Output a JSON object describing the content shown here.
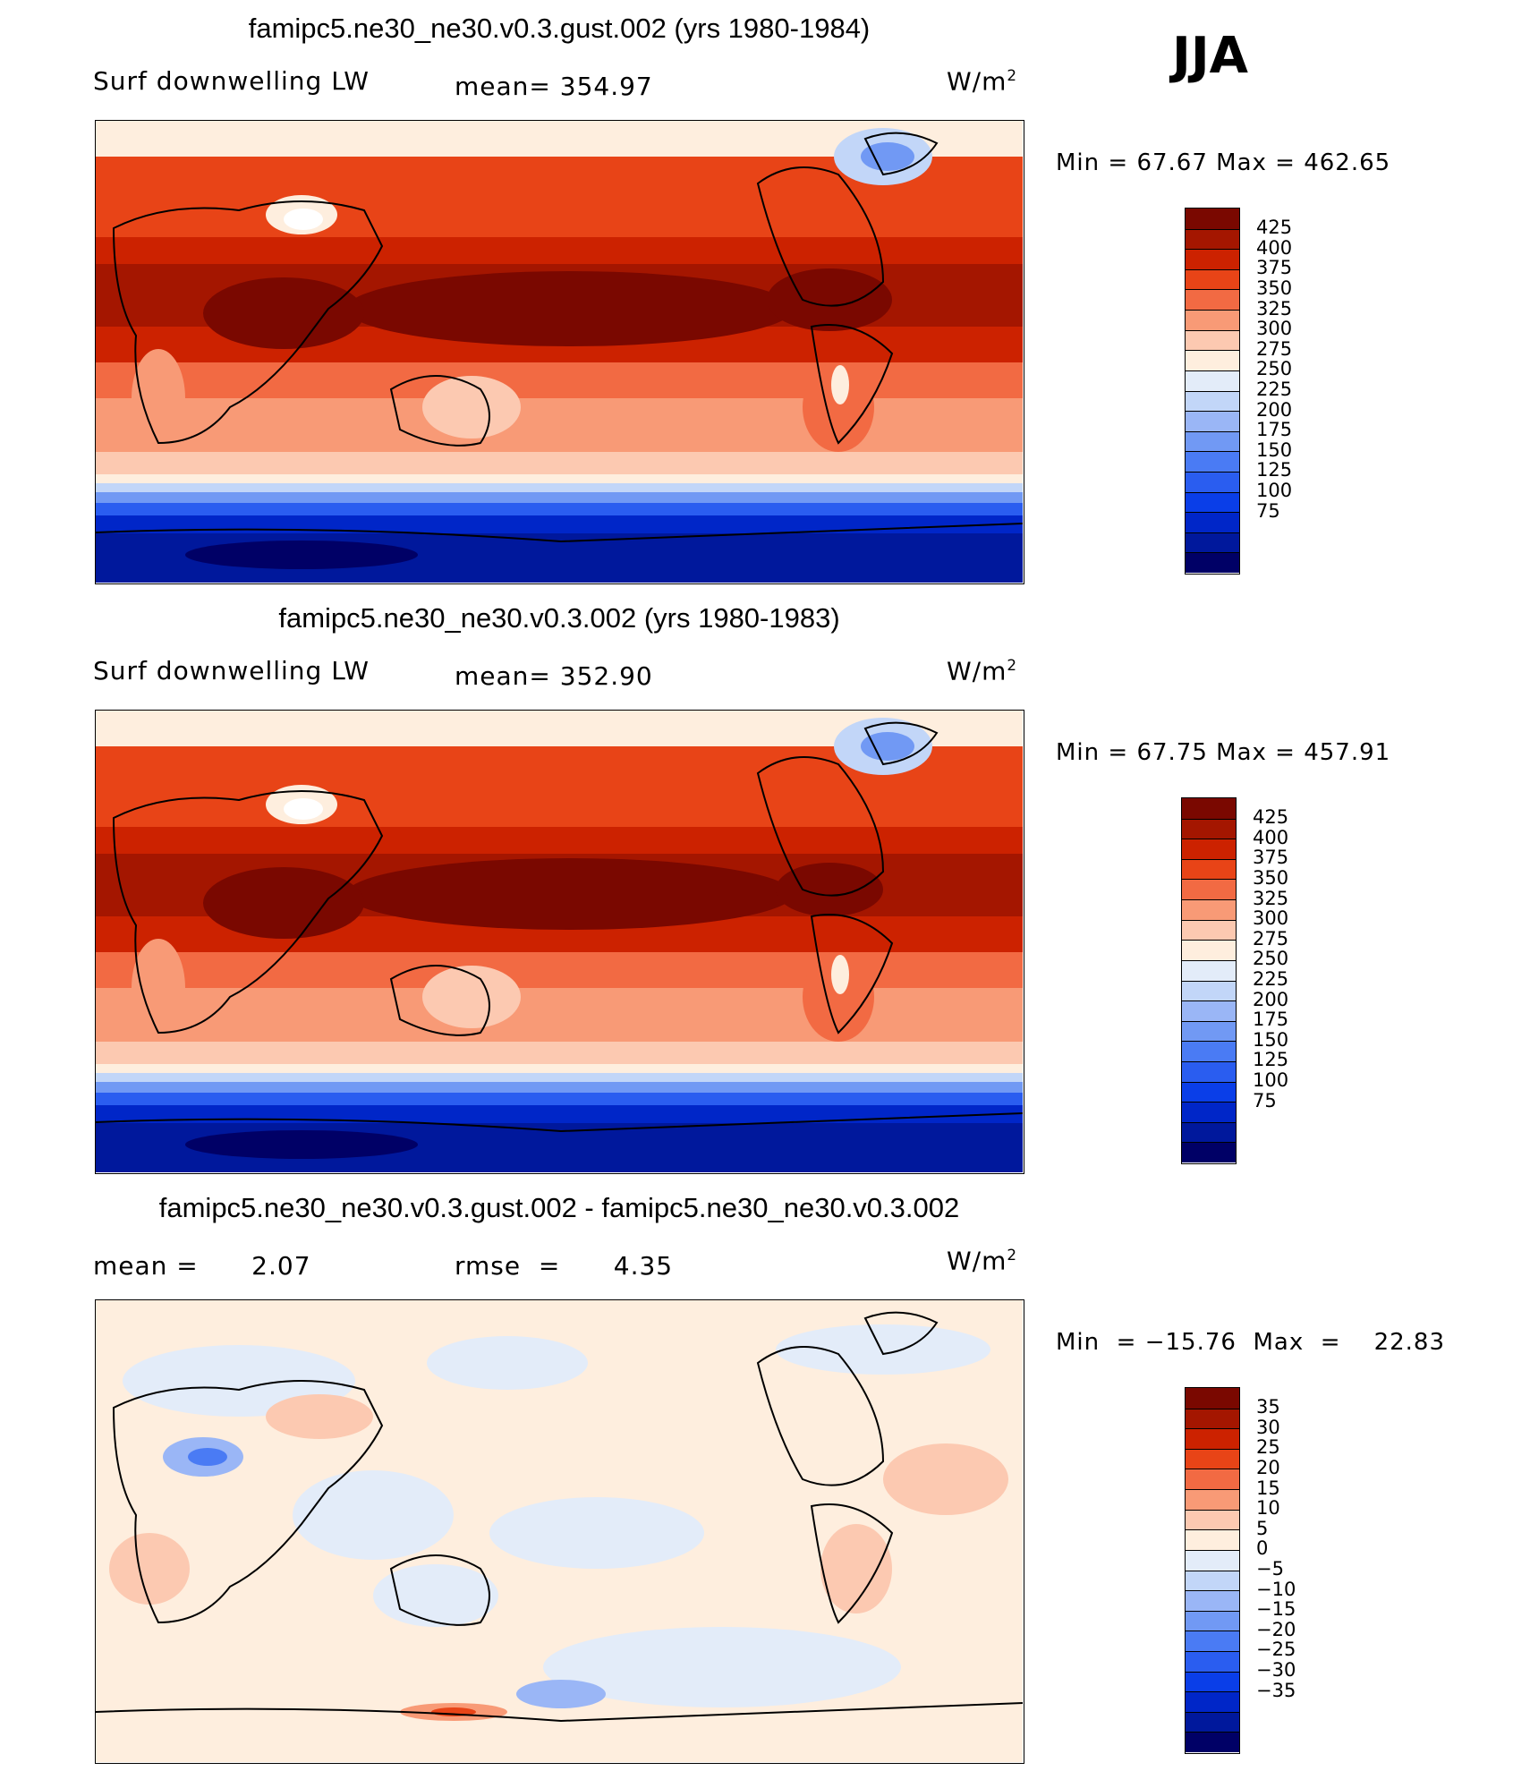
{
  "season": "JJA",
  "colors": {
    "abs_scale": [
      "#000066",
      "#00189c",
      "#0026c8",
      "#0a3ee8",
      "#2a5df0",
      "#4a7bf4",
      "#7199f4",
      "#9ab6f6",
      "#c2d6f8",
      "#e3ecf9",
      "#feeede",
      "#fcc9b1",
      "#f89a76",
      "#f26a43",
      "#e84417",
      "#cc2200",
      "#a41600",
      "#7a0800"
    ],
    "diff_scale": [
      "#000066",
      "#00189c",
      "#0026c8",
      "#0a3ee8",
      "#2a5df0",
      "#4a7bf4",
      "#7199f4",
      "#9ab6f6",
      "#c2d6f8",
      "#e3ecf9",
      "#feeede",
      "#fcc9b1",
      "#f89a76",
      "#f26a43",
      "#e84417",
      "#cc2200",
      "#a41600",
      "#7a0800"
    ]
  },
  "panels": [
    {
      "title": "famipc5.ne30_ne30.v0.3.gust.002 (yrs 1980-1984)",
      "left_label": "Surf downwelling LW",
      "center_label": "mean= 354.97",
      "units": "W/m",
      "units_exp": "2",
      "minmax": "Min =   67.67  Max  =  462.65"
    },
    {
      "title": "famipc5.ne30_ne30.v0.3.002 (yrs 1980-1983)",
      "left_label": "Surf downwelling LW",
      "center_label": "mean= 352.90",
      "units": "W/m",
      "units_exp": "2",
      "minmax": "Min =   67.75  Max  =  457.91"
    },
    {
      "title": "famipc5.ne30_ne30.v0.3.gust.002 - famipc5.ne30_ne30.v0.3.002",
      "left_label": "mean =      2.07",
      "center_label": "rmse  =      4.35",
      "units": "W/m",
      "units_exp": "2",
      "minmax": "Min  = −15.76  Max  =    22.83"
    }
  ],
  "chart_data": [
    {
      "type": "heatmap",
      "title": "famipc5.ne30_ne30.v0.3.gust.002 (yrs 1980-1984)",
      "variable": "Surf downwelling LW",
      "mean": 354.97,
      "min": 67.67,
      "max": 462.65,
      "units": "W/m2",
      "colorbar_levels": [
        "425",
        "400",
        "375",
        "350",
        "325",
        "300",
        "275",
        "250",
        "225",
        "200",
        "175",
        "150",
        "125",
        "100",
        "75"
      ]
    },
    {
      "type": "heatmap",
      "title": "famipc5.ne30_ne30.v0.3.002 (yrs 1980-1983)",
      "variable": "Surf downwelling LW",
      "mean": 352.9,
      "min": 67.75,
      "max": 457.91,
      "units": "W/m2",
      "colorbar_levels": [
        "425",
        "400",
        "375",
        "350",
        "325",
        "300",
        "275",
        "250",
        "225",
        "200",
        "175",
        "150",
        "125",
        "100",
        "75"
      ]
    },
    {
      "type": "heatmap",
      "title": "famipc5.ne30_ne30.v0.3.gust.002 - famipc5.ne30_ne30.v0.3.002",
      "mean": 2.07,
      "rmse": 4.35,
      "min": -15.76,
      "max": 22.83,
      "units": "W/m2",
      "colorbar_levels": [
        "35",
        "30",
        "25",
        "20",
        "15",
        "10",
        "5",
        "0",
        "−5",
        "−10",
        "−15",
        "−20",
        "−25",
        "−30",
        "−35"
      ]
    }
  ]
}
